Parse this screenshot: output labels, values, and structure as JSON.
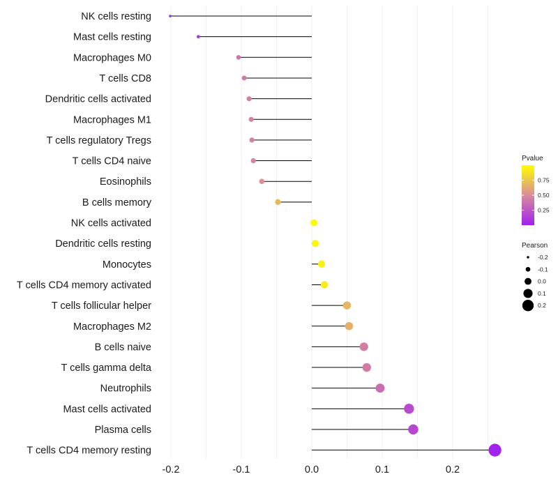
{
  "chart_data": {
    "type": "lollipop",
    "xlim": [
      -0.2,
      0.26
    ],
    "xticks": [
      -0.2,
      -0.1,
      0.0,
      0.1,
      0.2
    ],
    "xtick_labels": [
      "-0.2",
      "-0.1",
      "0.0",
      "0.1",
      "0.2"
    ],
    "grid": true,
    "categories": [
      "NK cells resting",
      "Mast cells resting",
      "Macrophages M0",
      "T cells CD8",
      "Dendritic cells activated",
      "Macrophages M1",
      "T cells regulatory  Tregs ",
      "T cells CD4 naive",
      "Eosinophils",
      "B cells memory",
      "NK cells activated",
      "Dendritic cells resting",
      "Monocytes",
      "T cells CD4 memory activated",
      "T cells follicular helper",
      "Macrophages M2",
      "B cells naive",
      "T cells gamma delta",
      "Neutrophils",
      "Mast cells activated",
      "Plasma cells",
      "T cells CD4 memory resting"
    ],
    "pearson": [
      -0.201,
      -0.161,
      -0.104,
      -0.096,
      -0.089,
      -0.086,
      -0.085,
      -0.083,
      -0.071,
      -0.048,
      0.003,
      0.005,
      0.014,
      0.018,
      0.05,
      0.053,
      0.074,
      0.078,
      0.097,
      0.138,
      0.144,
      0.26
    ],
    "pvalue": [
      0.02,
      0.1,
      0.4,
      0.42,
      0.44,
      0.45,
      0.45,
      0.46,
      0.52,
      0.7,
      0.98,
      0.97,
      0.93,
      0.91,
      0.68,
      0.66,
      0.44,
      0.42,
      0.36,
      0.2,
      0.18,
      0.01
    ],
    "color_legend": {
      "title": "Pvalue",
      "ticks": [
        0.25,
        0.5,
        0.75
      ],
      "tick_labels": [
        "0.25",
        "0.50",
        "0.75"
      ],
      "range": [
        0.0,
        1.0
      ],
      "color_low": "#a020f0",
      "color_mid": "#d98c9a",
      "color_high": "#ffff00"
    },
    "size_legend": {
      "title": "Pearson",
      "values": [
        -0.2,
        -0.1,
        0.0,
        0.1,
        0.2
      ],
      "labels": [
        "-0.2",
        "-0.1",
        "0.0",
        "0.1",
        "0.2"
      ]
    }
  }
}
